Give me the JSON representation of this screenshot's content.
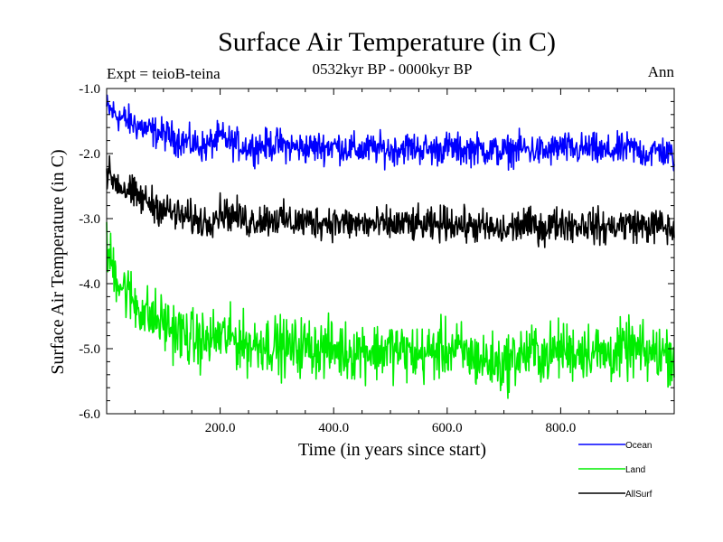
{
  "chart_data": {
    "type": "line",
    "title": "Surface Air Temperature (in C)",
    "subtitle": "0532kyr BP - 0000kyr BP",
    "experiment_label": "Expt = teioB-teina",
    "season_label": "Ann",
    "xlabel": "Time (in years since start)",
    "ylabel": "Surface Air Temperature (in C)",
    "xlim": [
      0,
      1000
    ],
    "ylim": [
      -6.0,
      -1.0
    ],
    "x_ticks": [
      200,
      400,
      600,
      800
    ],
    "x_tick_labels": [
      "200.0",
      "400.0",
      "600.0",
      "800.0"
    ],
    "y_ticks": [
      -1.0,
      -2.0,
      -3.0,
      -4.0,
      -5.0,
      -6.0
    ],
    "y_tick_labels": [
      "-1.0",
      "-2.0",
      "-3.0",
      "-4.0",
      "-5.0",
      "-6.0"
    ],
    "legend_position": "bottom-right, outside plot",
    "series": [
      {
        "name": "Ocean",
        "color": "#0000ff",
        "x": [
          0,
          25,
          50,
          75,
          100,
          125,
          150,
          175,
          200,
          225,
          250,
          275,
          300,
          325,
          350,
          375,
          400,
          425,
          450,
          475,
          500,
          525,
          550,
          575,
          600,
          625,
          650,
          675,
          700,
          725,
          750,
          775,
          800,
          825,
          850,
          875,
          900,
          925,
          950,
          975,
          1000
        ],
        "values": [
          -1.3,
          -1.45,
          -1.55,
          -1.65,
          -1.7,
          -1.78,
          -1.85,
          -1.9,
          -1.75,
          -1.85,
          -1.9,
          -1.88,
          -1.85,
          -1.9,
          -1.92,
          -1.9,
          -1.88,
          -1.92,
          -1.95,
          -1.92,
          -1.95,
          -1.9,
          -1.92,
          -1.95,
          -1.9,
          -1.95,
          -1.92,
          -1.95,
          -1.98,
          -1.92,
          -1.95,
          -1.98,
          -1.9,
          -1.95,
          -1.92,
          -1.98,
          -1.95,
          -1.92,
          -2.0,
          -1.95,
          -2.05
        ],
        "noise": 0.12
      },
      {
        "name": "Land",
        "color": "#00ee00",
        "x": [
          0,
          25,
          50,
          75,
          100,
          125,
          150,
          175,
          200,
          225,
          250,
          275,
          300,
          325,
          350,
          375,
          400,
          425,
          450,
          475,
          500,
          525,
          550,
          575,
          600,
          625,
          650,
          675,
          700,
          725,
          750,
          775,
          800,
          825,
          850,
          875,
          900,
          925,
          950,
          975,
          1000
        ],
        "values": [
          -3.5,
          -4.0,
          -4.3,
          -4.5,
          -4.6,
          -4.75,
          -4.85,
          -4.9,
          -4.8,
          -4.85,
          -4.95,
          -4.9,
          -4.95,
          -5.0,
          -4.95,
          -5.0,
          -5.0,
          -5.05,
          -5.0,
          -5.05,
          -5.0,
          -5.05,
          -5.1,
          -5.05,
          -5.0,
          -5.05,
          -5.15,
          -5.2,
          -5.25,
          -5.1,
          -5.05,
          -5.1,
          -5.0,
          -5.05,
          -5.0,
          -5.1,
          -5.05,
          -5.0,
          -5.1,
          -5.05,
          -5.1
        ],
        "noise": 0.22
      },
      {
        "name": "AllSurf",
        "color": "#000000",
        "x": [
          0,
          25,
          50,
          75,
          100,
          125,
          150,
          175,
          200,
          225,
          250,
          275,
          300,
          325,
          350,
          375,
          400,
          425,
          450,
          475,
          500,
          525,
          550,
          575,
          600,
          625,
          650,
          675,
          700,
          725,
          750,
          775,
          800,
          825,
          850,
          875,
          900,
          925,
          950,
          975,
          1000
        ],
        "values": [
          -2.3,
          -2.5,
          -2.65,
          -2.75,
          -2.85,
          -2.95,
          -3.0,
          -3.05,
          -2.9,
          -2.95,
          -3.05,
          -3.0,
          -3.0,
          -3.05,
          -3.05,
          -3.05,
          -3.05,
          -3.08,
          -3.08,
          -3.1,
          -3.1,
          -3.08,
          -3.1,
          -3.12,
          -3.05,
          -3.1,
          -3.12,
          -3.15,
          -3.2,
          -3.1,
          -3.1,
          -3.15,
          -3.05,
          -3.1,
          -3.08,
          -3.15,
          -3.1,
          -3.08,
          -3.12,
          -3.1,
          -3.2
        ],
        "noise": 0.13
      }
    ]
  }
}
